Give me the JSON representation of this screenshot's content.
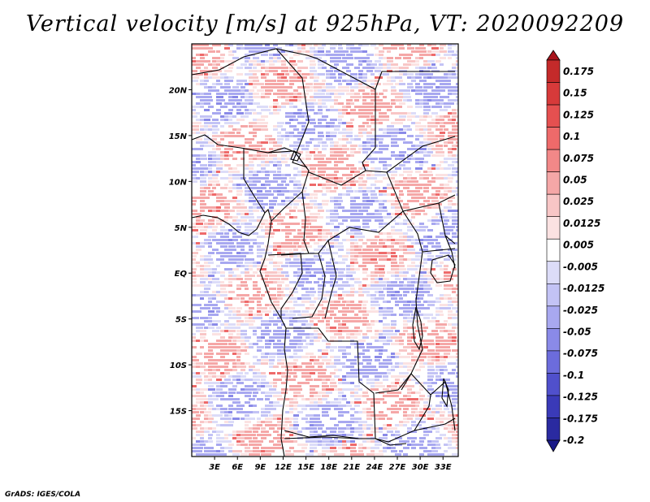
{
  "title": "Vertical velocity [m/s] at 925hPa, VT: 2020092209",
  "footer": "GrADS: IGES/COLA",
  "map": {
    "lon_range": [
      0,
      35
    ],
    "lat_range": [
      -20,
      25
    ],
    "lat_ticks": [
      {
        "value": 20,
        "label": "20N"
      },
      {
        "value": 15,
        "label": "15N"
      },
      {
        "value": 10,
        "label": "10N"
      },
      {
        "value": 5,
        "label": "5N"
      },
      {
        "value": 0,
        "label": "EQ"
      },
      {
        "value": -5,
        "label": "5S"
      },
      {
        "value": -10,
        "label": "10S"
      },
      {
        "value": -15,
        "label": "15S"
      }
    ],
    "lon_ticks": [
      {
        "value": 3,
        "label": "3E"
      },
      {
        "value": 6,
        "label": "6E"
      },
      {
        "value": 9,
        "label": "9E"
      },
      {
        "value": 12,
        "label": "12E"
      },
      {
        "value": 15,
        "label": "15E"
      },
      {
        "value": 18,
        "label": "18E"
      },
      {
        "value": 21,
        "label": "21E"
      },
      {
        "value": 24,
        "label": "24E"
      },
      {
        "value": 27,
        "label": "27E"
      },
      {
        "value": 30,
        "label": "30E"
      },
      {
        "value": 33,
        "label": "33E"
      }
    ]
  },
  "colorbar": {
    "labels": [
      "0.175",
      "0.15",
      "0.125",
      "0.1",
      "0.075",
      "0.05",
      "0.025",
      "0.0125",
      "0.005",
      "-0.005",
      "-0.0125",
      "-0.025",
      "-0.05",
      "-0.075",
      "-0.1",
      "-0.125",
      "-0.175",
      "-0.2"
    ],
    "colors": [
      "#a8141c",
      "#c42a2a",
      "#d73a3a",
      "#e55050",
      "#ee6a6a",
      "#f28888",
      "#f5a7a7",
      "#f8c6c6",
      "#fbe2e2",
      "#ffffff",
      "#dcdcf8",
      "#c3c3f5",
      "#a8a8f0",
      "#8a8ae8",
      "#6c6cdc",
      "#5050cc",
      "#3a3ab8",
      "#2a2aa0",
      "#1a1a88"
    ]
  }
}
